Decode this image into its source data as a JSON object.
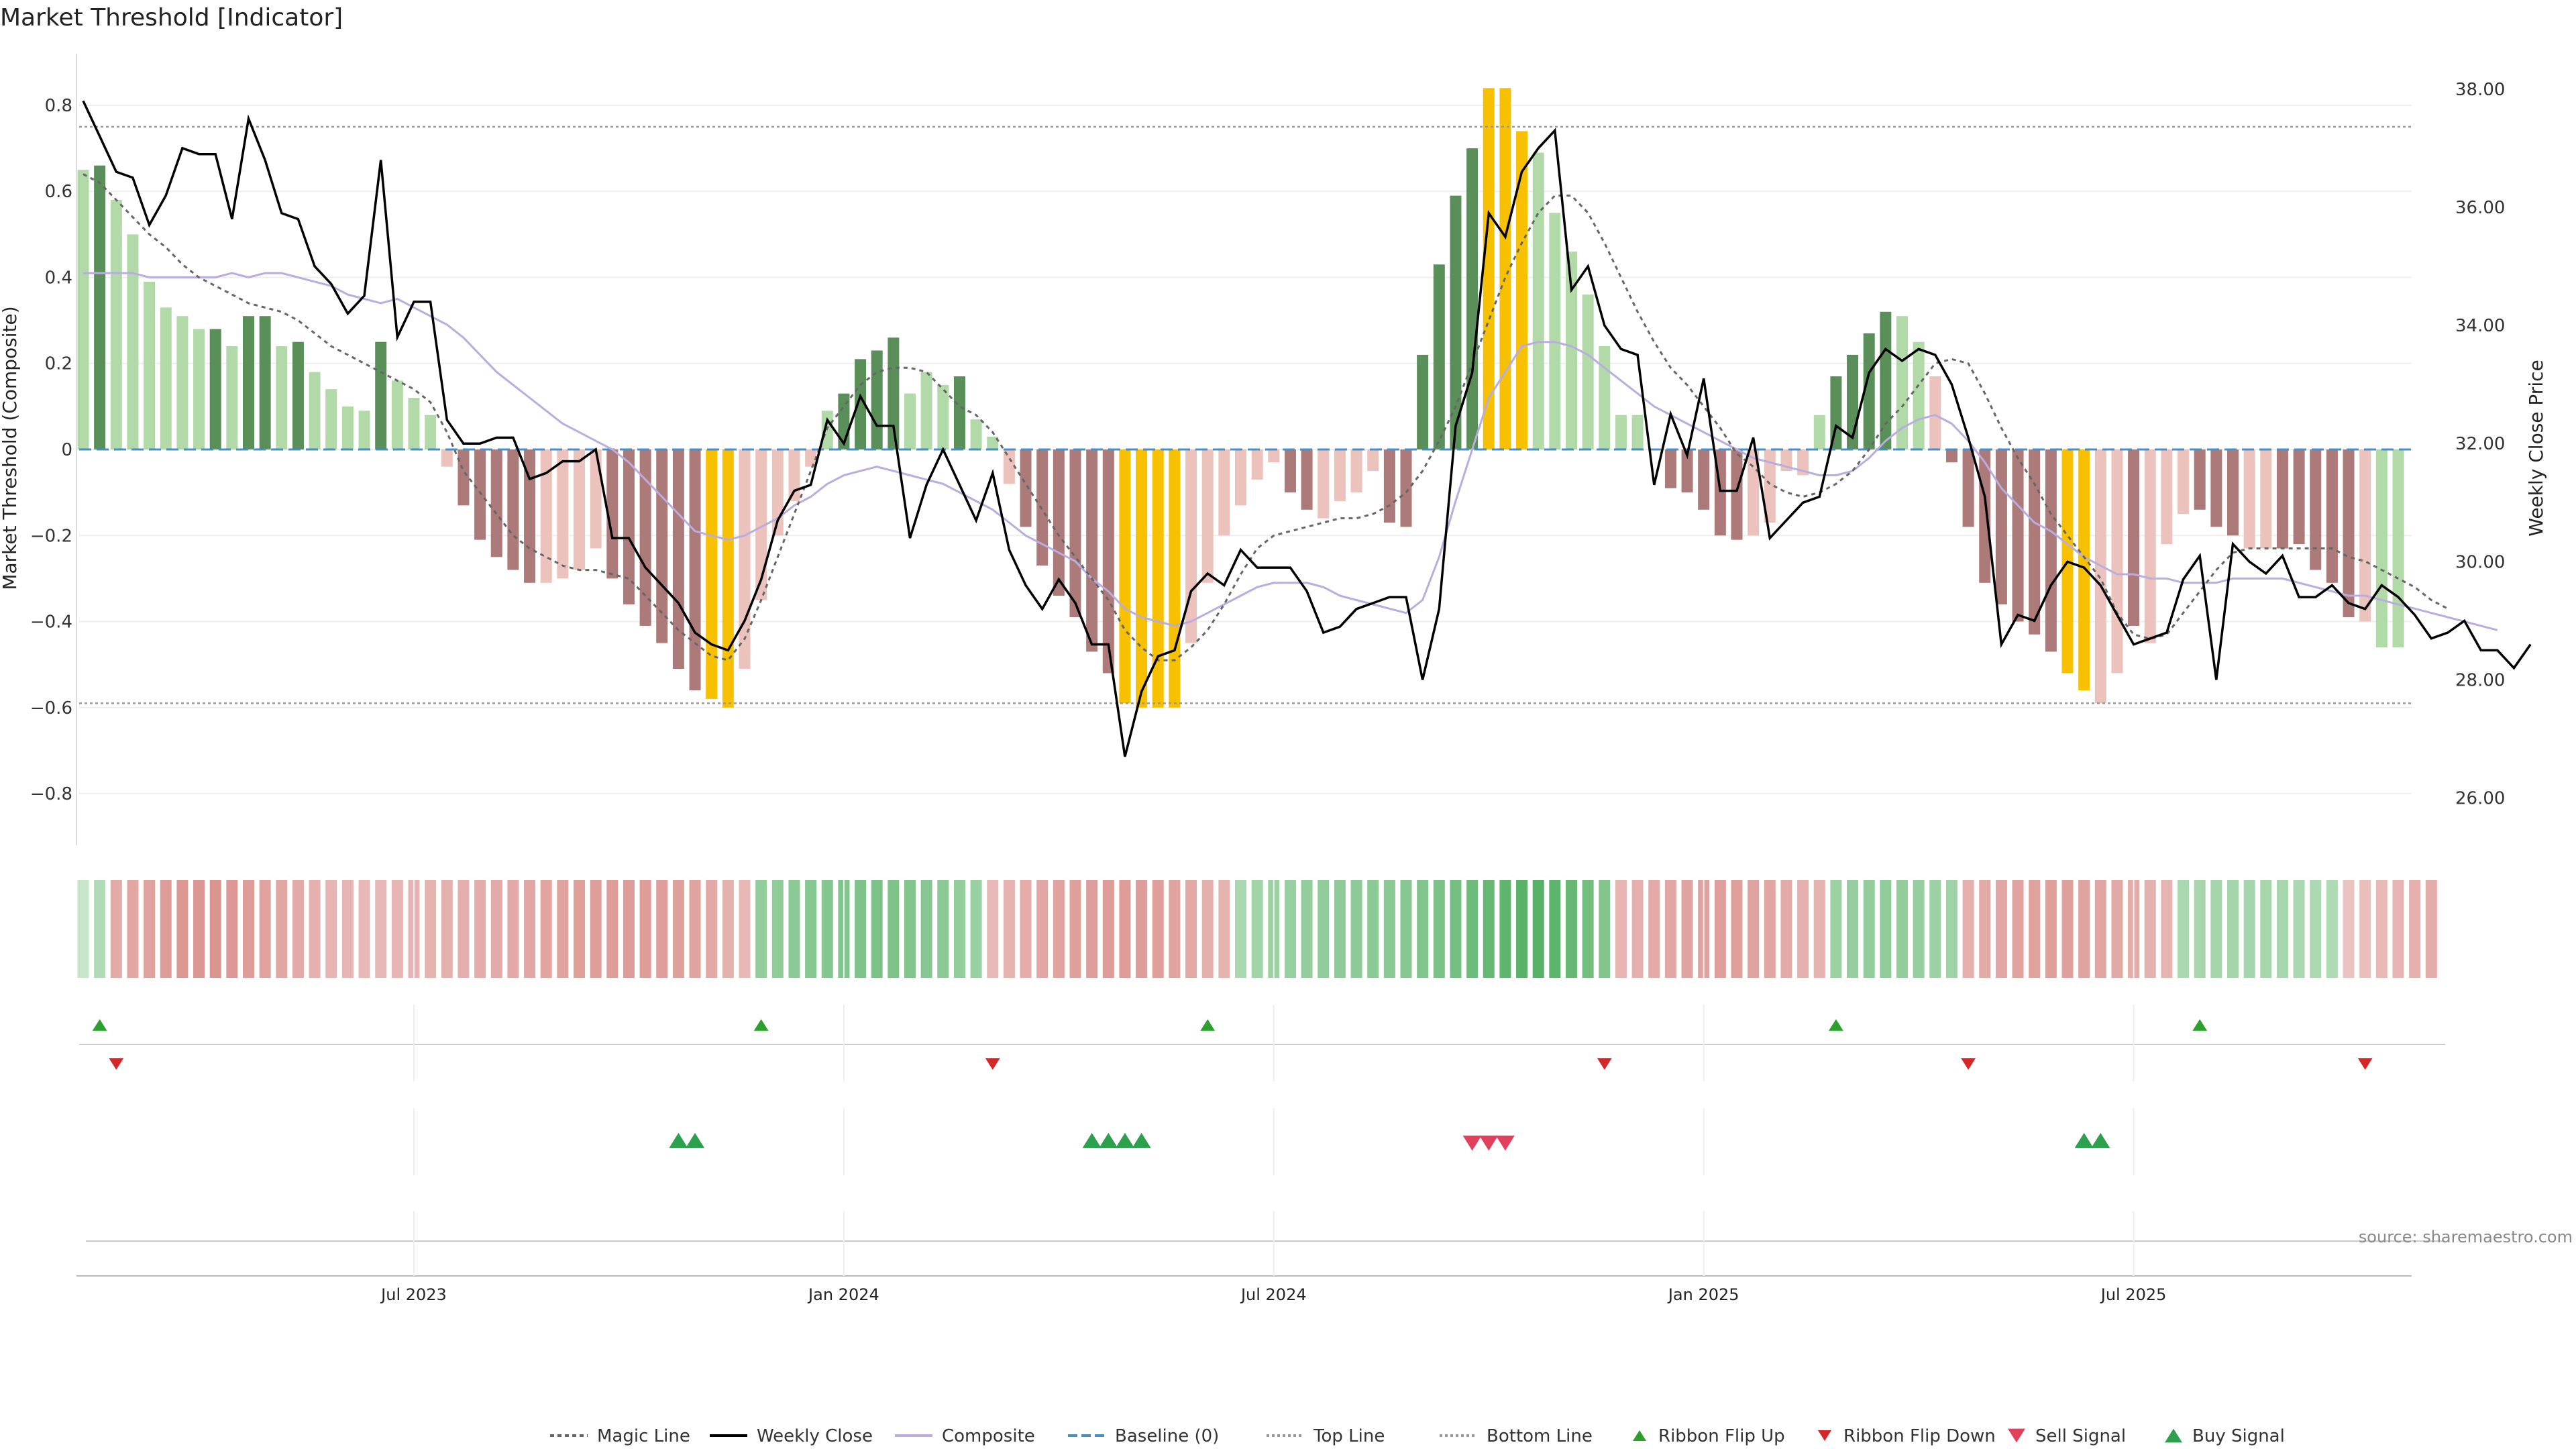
{
  "title": "Market Threshold [Indicator]",
  "source": "source: sharemaestro.com",
  "colors": {
    "bar_strong_pos": "#5a8f5a",
    "bar_weak_pos": "#b2d9a8",
    "bar_strong_neg": "#ad7a7a",
    "bar_weak_neg": "#ecc2bc",
    "bar_extreme": "#f7c000",
    "close": "#000000",
    "composite": "#b9addf",
    "magic": "#666666",
    "baseline": "#4a8ec6",
    "threshold": "#999999",
    "up_marker": "#2ca02c",
    "down_marker": "#d62728",
    "sell_marker": "#e0405a",
    "buy_marker": "#2ca04c"
  },
  "chart_data": {
    "type": "bar",
    "title": "Market Threshold [Indicator]",
    "ylabel": "Market Threshold (Composite)",
    "y2label": "Weekly Close Price",
    "ylim": [
      -0.92,
      0.92
    ],
    "y2lim": [
      25.2,
      38.6
    ],
    "yticks": [
      0.8,
      0.6,
      0.4,
      0.2,
      0,
      -0.2,
      -0.4,
      -0.6,
      -0.8
    ],
    "ytick_labels": [
      "0.8",
      "0.6",
      "0.4",
      "0.2",
      "0",
      "−0.2",
      "−0.4",
      "−0.6",
      "−0.8"
    ],
    "y2ticks": [
      38,
      36,
      34,
      32,
      30,
      28,
      26
    ],
    "y2tick_labels": [
      "38.00",
      "36.00",
      "34.00",
      "32.00",
      "30.00",
      "28.00",
      "26.00"
    ],
    "top_line": 0.75,
    "bottom_line": -0.59,
    "xticks": [
      {
        "label": "Jul 2023",
        "index": 20
      },
      {
        "label": "Jan 2024",
        "index": 46
      },
      {
        "label": "Jul 2024",
        "index": 72
      },
      {
        "label": "Jan 2025",
        "index": 98
      },
      {
        "label": "Jul 2025",
        "index": 124
      }
    ],
    "composite_values": [
      0.65,
      0.66,
      0.58,
      0.5,
      0.39,
      0.33,
      0.31,
      0.28,
      0.28,
      0.24,
      0.31,
      0.31,
      0.24,
      0.25,
      0.18,
      0.14,
      0.1,
      0.09,
      0.25,
      0.16,
      0.12,
      0.08,
      -0.04,
      -0.13,
      -0.21,
      -0.25,
      -0.28,
      -0.31,
      -0.31,
      -0.3,
      -0.28,
      -0.23,
      -0.3,
      -0.36,
      -0.41,
      -0.45,
      -0.51,
      -0.56,
      -0.58,
      -0.6,
      -0.51,
      -0.35,
      -0.2,
      -0.12,
      -0.04,
      0.09,
      0.13,
      0.21,
      0.23,
      0.26,
      0.13,
      0.18,
      0.15,
      0.17,
      0.07,
      0.03,
      -0.08,
      -0.18,
      -0.27,
      -0.34,
      -0.39,
      -0.47,
      -0.52,
      -0.59,
      -0.6,
      -0.6,
      -0.6,
      -0.45,
      -0.31,
      -0.2,
      -0.13,
      -0.07,
      -0.03,
      -0.1,
      -0.14,
      -0.16,
      -0.12,
      -0.1,
      -0.05,
      -0.17,
      -0.18,
      0.22,
      0.43,
      0.59,
      0.7,
      0.84,
      0.84,
      0.74,
      0.69,
      0.55,
      0.46,
      0.36,
      0.24,
      0.08,
      0.08,
      0.0,
      -0.09,
      -0.1,
      -0.14,
      -0.2,
      -0.21,
      -0.2,
      -0.17,
      -0.05,
      -0.06,
      0.08,
      0.17,
      0.22,
      0.27,
      0.32,
      0.31,
      0.25,
      0.17,
      -0.03,
      -0.18,
      -0.31,
      -0.36,
      -0.4,
      -0.43,
      -0.47,
      -0.52,
      -0.56,
      -0.59,
      -0.52,
      -0.41,
      -0.45,
      -0.22,
      -0.15,
      -0.14,
      -0.18,
      -0.2,
      -0.23,
      -0.23,
      -0.23,
      -0.22,
      -0.28,
      -0.31,
      -0.39,
      -0.4,
      -0.46,
      -0.46
    ],
    "bar_kinds": [
      "P",
      "S",
      "P",
      "P",
      "P",
      "P",
      "P",
      "P",
      "S",
      "P",
      "S",
      "S",
      "P",
      "S",
      "P",
      "P",
      "P",
      "P",
      "S",
      "P",
      "P",
      "P",
      "N",
      "Q",
      "Q",
      "Q",
      "Q",
      "Q",
      "N",
      "N",
      "N",
      "N",
      "Q",
      "Q",
      "Q",
      "Q",
      "Q",
      "Q",
      "X",
      "X",
      "N",
      "N",
      "N",
      "N",
      "N",
      "P",
      "S",
      "S",
      "S",
      "S",
      "P",
      "P",
      "P",
      "S",
      "P",
      "P",
      "N",
      "Q",
      "Q",
      "Q",
      "Q",
      "Q",
      "Q",
      "X",
      "X",
      "X",
      "X",
      "N",
      "N",
      "N",
      "N",
      "N",
      "N",
      "Q",
      "Q",
      "N",
      "N",
      "N",
      "N",
      "Q",
      "Q",
      "S",
      "S",
      "S",
      "S",
      "X",
      "X",
      "X",
      "P",
      "P",
      "P",
      "P",
      "P",
      "P",
      "P",
      "N",
      "Q",
      "Q",
      "Q",
      "Q",
      "Q",
      "N",
      "N",
      "N",
      "N",
      "P",
      "S",
      "S",
      "S",
      "S",
      "P",
      "P",
      "N",
      "Q",
      "Q",
      "Q",
      "Q",
      "Q",
      "Q",
      "Q",
      "X",
      "X",
      "N",
      "N",
      "Q",
      "N",
      "N",
      "N",
      "Q",
      "Q",
      "Q",
      "N",
      "N",
      "Q",
      "Q",
      "Q",
      "Q",
      "Q",
      "N"
    ],
    "series": [
      {
        "name": "Weekly Close",
        "values": [
          37.8,
          37.2,
          36.6,
          36.5,
          35.7,
          36.2,
          37.0,
          36.9,
          36.9,
          35.8,
          37.5,
          36.8,
          35.9,
          35.8,
          35.0,
          34.7,
          34.2,
          34.5,
          36.8,
          33.8,
          34.4,
          34.4,
          32.4,
          32.0,
          32.0,
          32.1,
          32.1,
          31.4,
          31.5,
          31.7,
          31.7,
          31.9,
          30.4,
          30.4,
          29.9,
          29.6,
          29.3,
          28.8,
          28.6,
          28.5,
          29.0,
          29.7,
          30.7,
          31.2,
          31.3,
          32.4,
          32.0,
          32.8,
          32.3,
          32.3,
          30.4,
          31.3,
          31.9,
          31.3,
          30.7,
          31.5,
          30.2,
          29.6,
          29.2,
          29.7,
          29.3,
          28.6,
          28.6,
          26.7,
          27.8,
          28.4,
          28.5,
          29.5,
          29.8,
          29.6,
          30.2,
          29.9,
          29.9,
          29.9,
          29.5,
          28.8,
          28.9,
          29.2,
          29.3,
          29.4,
          29.4,
          28.0,
          29.2,
          32.3,
          33.2,
          35.9,
          35.5,
          36.6,
          37.0,
          37.3,
          34.6,
          35.0,
          34.0,
          33.6,
          33.5,
          31.3,
          32.5,
          31.8,
          33.1,
          31.2,
          31.2,
          32.1,
          30.4,
          30.7,
          31.0,
          31.1,
          32.3,
          32.1,
          33.2,
          33.6,
          33.4,
          33.6,
          33.5,
          33.0,
          32.1,
          31.1,
          28.6,
          29.1,
          29.0,
          29.6,
          30.0,
          29.9,
          29.6,
          29.1,
          28.6,
          28.7,
          28.8,
          29.7,
          30.1,
          28.0,
          30.3,
          30.0,
          29.8,
          30.1,
          29.4,
          29.4,
          29.6,
          29.3,
          29.2,
          29.6,
          29.4,
          29.1,
          28.7,
          28.8,
          29.0,
          28.5,
          28.5,
          28.2,
          28.6
        ]
      },
      {
        "name": "Composite",
        "values": [
          0.41,
          0.41,
          0.41,
          0.41,
          0.4,
          0.4,
          0.4,
          0.4,
          0.4,
          0.41,
          0.4,
          0.41,
          0.41,
          0.4,
          0.39,
          0.38,
          0.36,
          0.35,
          0.34,
          0.35,
          0.33,
          0.31,
          0.29,
          0.26,
          0.22,
          0.18,
          0.15,
          0.12,
          0.09,
          0.06,
          0.04,
          0.02,
          0.0,
          -0.03,
          -0.07,
          -0.11,
          -0.15,
          -0.19,
          -0.2,
          -0.21,
          -0.2,
          -0.18,
          -0.16,
          -0.13,
          -0.11,
          -0.08,
          -0.06,
          -0.05,
          -0.04,
          -0.05,
          -0.06,
          -0.07,
          -0.08,
          -0.1,
          -0.12,
          -0.14,
          -0.17,
          -0.2,
          -0.22,
          -0.24,
          -0.26,
          -0.3,
          -0.33,
          -0.37,
          -0.39,
          -0.4,
          -0.41,
          -0.4,
          -0.38,
          -0.36,
          -0.34,
          -0.32,
          -0.31,
          -0.31,
          -0.31,
          -0.32,
          -0.34,
          -0.35,
          -0.36,
          -0.37,
          -0.38,
          -0.35,
          -0.25,
          -0.12,
          0.0,
          0.12,
          0.18,
          0.24,
          0.25,
          0.25,
          0.24,
          0.22,
          0.19,
          0.16,
          0.13,
          0.1,
          0.08,
          0.06,
          0.04,
          0.02,
          0.0,
          -0.02,
          -0.03,
          -0.04,
          -0.05,
          -0.06,
          -0.06,
          -0.05,
          -0.02,
          0.02,
          0.05,
          0.07,
          0.08,
          0.06,
          0.02,
          -0.03,
          -0.09,
          -0.13,
          -0.17,
          -0.19,
          -0.22,
          -0.25,
          -0.27,
          -0.29,
          -0.29,
          -0.3,
          -0.3,
          -0.31,
          -0.31,
          -0.31,
          -0.3,
          -0.3,
          -0.3,
          -0.3,
          -0.31,
          -0.32,
          -0.33,
          -0.34,
          -0.34,
          -0.35,
          -0.36,
          -0.37,
          -0.38,
          -0.39,
          -0.4,
          -0.41,
          -0.42
        ]
      },
      {
        "name": "Magic Line",
        "values": [
          0.64,
          0.62,
          0.58,
          0.54,
          0.5,
          0.47,
          0.43,
          0.4,
          0.38,
          0.36,
          0.34,
          0.33,
          0.32,
          0.3,
          0.27,
          0.24,
          0.22,
          0.2,
          0.18,
          0.16,
          0.14,
          0.11,
          0.04,
          -0.05,
          -0.1,
          -0.15,
          -0.2,
          -0.23,
          -0.25,
          -0.27,
          -0.28,
          -0.28,
          -0.29,
          -0.3,
          -0.34,
          -0.38,
          -0.42,
          -0.45,
          -0.48,
          -0.49,
          -0.44,
          -0.35,
          -0.25,
          -0.15,
          -0.05,
          0.05,
          0.1,
          0.15,
          0.18,
          0.19,
          0.19,
          0.18,
          0.14,
          0.1,
          0.08,
          0.04,
          -0.02,
          -0.08,
          -0.14,
          -0.2,
          -0.25,
          -0.3,
          -0.35,
          -0.42,
          -0.46,
          -0.49,
          -0.49,
          -0.46,
          -0.42,
          -0.36,
          -0.29,
          -0.23,
          -0.2,
          -0.19,
          -0.18,
          -0.17,
          -0.16,
          -0.16,
          -0.15,
          -0.13,
          -0.1,
          -0.05,
          0.02,
          0.1,
          0.2,
          0.3,
          0.4,
          0.48,
          0.55,
          0.59,
          0.59,
          0.55,
          0.48,
          0.4,
          0.32,
          0.25,
          0.19,
          0.15,
          0.1,
          0.05,
          -0.01,
          -0.04,
          -0.08,
          -0.1,
          -0.11,
          -0.1,
          -0.08,
          -0.05,
          0.0,
          0.06,
          0.1,
          0.15,
          0.2,
          0.21,
          0.2,
          0.13,
          0.05,
          -0.02,
          -0.08,
          -0.15,
          -0.2,
          -0.25,
          -0.3,
          -0.38,
          -0.43,
          -0.44,
          -0.43,
          -0.38,
          -0.33,
          -0.28,
          -0.24,
          -0.23,
          -0.23,
          -0.23,
          -0.23,
          -0.23,
          -0.23,
          -0.25,
          -0.26,
          -0.28,
          -0.3,
          -0.32,
          -0.35,
          -0.37
        ]
      }
    ],
    "ribbon": [
      0.15,
      0.3,
      -0.5,
      -0.55,
      -0.6,
      -0.65,
      -0.7,
      -0.72,
      -0.75,
      -0.7,
      -0.65,
      -0.6,
      -0.55,
      -0.5,
      -0.45,
      -0.4,
      -0.38,
      -0.36,
      -0.36,
      -0.38,
      -0.4,
      -0.42,
      -0.44,
      -0.46,
      -0.48,
      -0.5,
      -0.52,
      -0.55,
      -0.57,
      -0.6,
      -0.62,
      -0.64,
      -0.65,
      -0.66,
      -0.65,
      -0.64,
      -0.62,
      -0.58,
      -0.52,
      -0.44,
      -0.36,
      0.5,
      0.52,
      0.55,
      0.58,
      0.6,
      0.62,
      0.64,
      0.65,
      0.64,
      0.62,
      0.58,
      0.55,
      0.5,
      0.46,
      -0.35,
      -0.42,
      -0.48,
      -0.54,
      -0.58,
      -0.62,
      -0.64,
      -0.66,
      -0.66,
      -0.65,
      -0.62,
      -0.58,
      -0.52,
      -0.46,
      -0.42,
      0.35,
      0.4,
      0.44,
      0.47,
      0.5,
      0.52,
      0.53,
      0.54,
      0.55,
      0.56,
      0.58,
      0.62,
      0.66,
      0.7,
      0.75,
      0.8,
      0.85,
      0.88,
      0.9,
      0.86,
      0.8,
      0.72,
      0.62,
      -0.4,
      -0.45,
      -0.5,
      -0.54,
      -0.58,
      -0.6,
      -0.62,
      -0.62,
      -0.6,
      -0.56,
      -0.5,
      -0.45,
      -0.42,
      0.45,
      0.48,
      0.5,
      0.52,
      0.5,
      0.48,
      0.45,
      0.42,
      -0.45,
      -0.5,
      -0.54,
      -0.58,
      -0.6,
      -0.62,
      -0.62,
      -0.6,
      -0.56,
      -0.52,
      -0.48,
      -0.44,
      -0.4,
      0.35,
      0.37,
      0.38,
      0.39,
      0.38,
      0.37,
      0.36,
      0.35,
      0.33,
      0.32,
      -0.25,
      -0.3,
      -0.35,
      -0.4,
      -0.45,
      -0.48
    ],
    "ribbon_flip_up": [
      1,
      41,
      68,
      106,
      128
    ],
    "ribbon_flip_down": [
      2,
      55,
      92,
      114,
      138
    ],
    "buy_signals": [
      36,
      37,
      61,
      62,
      63,
      64,
      121,
      122
    ],
    "sell_signals": [
      84,
      85,
      86
    ],
    "legend_position": "bottom",
    "legend": [
      "Magic Line",
      "Weekly Close",
      "Composite",
      "Baseline (0)",
      "Top Line",
      "Bottom Line",
      "Ribbon Flip Up",
      "Ribbon Flip Down",
      "Sell Signal",
      "Buy Signal"
    ]
  }
}
